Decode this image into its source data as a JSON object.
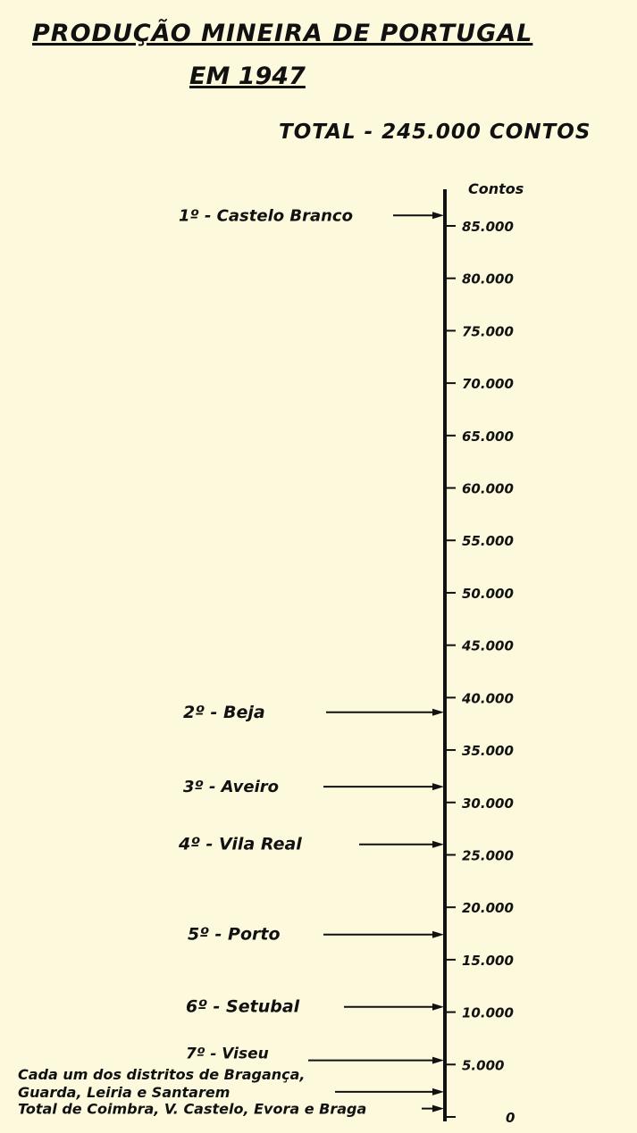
{
  "chart_data": {
    "type": "scale-diagram",
    "title": "PRODUÇÃO MINEIRA DE PORTUGAL",
    "subtitle": "EM 1947",
    "total_label": "TOTAL - 245.000 CONTOS",
    "ylabel": "Contos",
    "ylim": [
      0,
      85000
    ],
    "ticks": [
      {
        "value": 85000,
        "label": "85.000"
      },
      {
        "value": 80000,
        "label": "80.000"
      },
      {
        "value": 75000,
        "label": "75.000"
      },
      {
        "value": 70000,
        "label": "70.000"
      },
      {
        "value": 65000,
        "label": "65.000"
      },
      {
        "value": 60000,
        "label": "60.000"
      },
      {
        "value": 55000,
        "label": "55.000"
      },
      {
        "value": 50000,
        "label": "50.000"
      },
      {
        "value": 45000,
        "label": "45.000"
      },
      {
        "value": 40000,
        "label": "40.000"
      },
      {
        "value": 35000,
        "label": "35.000"
      },
      {
        "value": 30000,
        "label": "30.000"
      },
      {
        "value": 25000,
        "label": "25.000"
      },
      {
        "value": 20000,
        "label": "20.000"
      },
      {
        "value": 15000,
        "label": "15.000"
      },
      {
        "value": 10000,
        "label": "10.000"
      },
      {
        "value": 5000,
        "label": "5.000"
      },
      {
        "value": 0,
        "label": "0"
      }
    ],
    "entries": [
      {
        "label": "1º - Castelo Branco",
        "value": 86000
      },
      {
        "label": "2º - Beja",
        "value": 38600
      },
      {
        "label": "3º - Aveiro",
        "value": 31500
      },
      {
        "label": "4º - Vila Real",
        "value": 26000
      },
      {
        "label": "5º - Porto",
        "value": 17400
      },
      {
        "label": "6º - Setubal",
        "value": 10500
      },
      {
        "label": "7º - Viseu",
        "value": 5400
      },
      {
        "label": "Cada um dos distritos de Bragança,|Guarda, Leiria e Santarem",
        "value": 2400
      },
      {
        "label": "Total de Coimbra, V. Castelo, Evora e Braga",
        "value": 800
      }
    ]
  }
}
